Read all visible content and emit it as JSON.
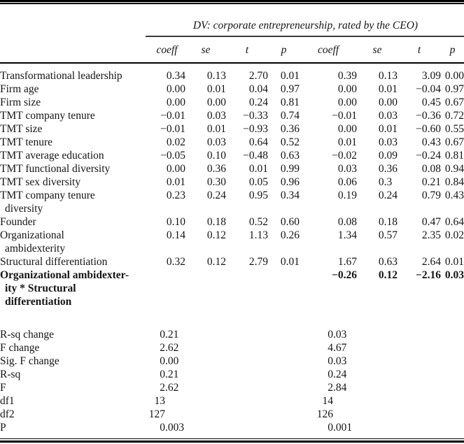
{
  "table": {
    "dv_header": "DV: corporate entrepreneurship, rated by the CEO)",
    "col_headers": [
      "coeff",
      "se",
      "t",
      "p",
      "coeff",
      "se",
      "t",
      "p"
    ],
    "rows": [
      {
        "label_lines": [
          "Transformational leadership"
        ],
        "m1": [
          "0.34",
          "0.13",
          "2.70",
          "0.01"
        ],
        "m2": [
          "0.39",
          "0.13",
          "3.09",
          "0.00"
        ],
        "bold": false
      },
      {
        "label_lines": [
          "Firm age"
        ],
        "m1": [
          "0.00",
          "0.01",
          "0.04",
          "0.97"
        ],
        "m2": [
          "0.00",
          "0.01",
          "−0.04",
          "0.97"
        ],
        "bold": false
      },
      {
        "label_lines": [
          "Firm size"
        ],
        "m1": [
          "0.00",
          "0.00",
          "0.24",
          "0.81"
        ],
        "m2": [
          "0.00",
          "0.00",
          "0.45",
          "0.67"
        ],
        "bold": false
      },
      {
        "label_lines": [
          "TMT company tenure"
        ],
        "m1": [
          "−0.01",
          "0.03",
          "−0.33",
          "0.74"
        ],
        "m2": [
          "−0.01",
          "0.03",
          "−0.36",
          "0.72"
        ],
        "bold": false
      },
      {
        "label_lines": [
          "TMT size"
        ],
        "m1": [
          "−0.01",
          "0.01",
          "−0.93",
          "0.36"
        ],
        "m2": [
          "0.00",
          "0.01",
          "−0.60",
          "0.55"
        ],
        "bold": false
      },
      {
        "label_lines": [
          "TMT tenure"
        ],
        "m1": [
          "0.02",
          "0.03",
          "0.64",
          "0.52"
        ],
        "m2": [
          "0.01",
          "0.03",
          "0.43",
          "0.67"
        ],
        "bold": false
      },
      {
        "label_lines": [
          "TMT average education"
        ],
        "m1": [
          "−0.05",
          "0.10",
          "−0.48",
          "0.63"
        ],
        "m2": [
          "−0.02",
          "0.09",
          "−0.24",
          "0.81"
        ],
        "bold": false
      },
      {
        "label_lines": [
          "TMT functional diversity"
        ],
        "m1": [
          "0.00",
          "0.36",
          "0.01",
          "0.99"
        ],
        "m2": [
          "0.03",
          "0.36",
          "0.08",
          "0.94"
        ],
        "bold": false
      },
      {
        "label_lines": [
          "TMT sex diversity"
        ],
        "m1": [
          "0.01",
          "0.30",
          "0.05",
          "0.96"
        ],
        "m2": [
          "0.06",
          "0.3",
          "0.21",
          "0.84"
        ],
        "bold": false
      },
      {
        "label_lines": [
          "TMT company tenure",
          "diversity"
        ],
        "m1": [
          "0.23",
          "0.24",
          "0.95",
          "0.34"
        ],
        "m2": [
          "0.19",
          "0.24",
          "0.79",
          "0.43"
        ],
        "bold": false
      },
      {
        "label_lines": [
          "Founder"
        ],
        "m1": [
          "0.10",
          "0.18",
          "0.52",
          "0.60"
        ],
        "m2": [
          "0.08",
          "0.18",
          "0.47",
          "0.64"
        ],
        "bold": false
      },
      {
        "label_lines": [
          "Organizational",
          "ambidexterity"
        ],
        "m1": [
          "0.14",
          "0.12",
          "1.13",
          "0.26"
        ],
        "m2": [
          "1.34",
          "0.57",
          "2.35",
          "0.02"
        ],
        "bold": false
      },
      {
        "label_lines": [
          "Structural differentiation"
        ],
        "m1": [
          "0.32",
          "0.12",
          "2.79",
          "0.01"
        ],
        "m2": [
          "1.67",
          "0.63",
          "2.64",
          "0.01"
        ],
        "bold": false
      },
      {
        "label_lines": [
          "Organizational ambidexter-",
          "ity * Structural",
          "differentiation"
        ],
        "m1": [
          "",
          "",
          "",
          ""
        ],
        "m2": [
          "−0.26",
          "0.12",
          "−2.16",
          "0.03"
        ],
        "bold": true
      }
    ],
    "summary_rows": [
      {
        "label": "R-sq change",
        "m1": "0.21",
        "m2": "0.03"
      },
      {
        "label": "F change",
        "m1": "2.62",
        "m2": "4.67"
      },
      {
        "label": "Sig. F change",
        "m1": "0.00",
        "m2": "0.03"
      },
      {
        "label": "R-sq",
        "m1": "0.21",
        "m2": "0.24"
      },
      {
        "label": "F",
        "m1": "2.62",
        "m2": "2.84"
      },
      {
        "label": "df1",
        "m1": "13",
        "m2": "14"
      },
      {
        "label": "df2",
        "m1": "127",
        "m2": "126"
      },
      {
        "label": "P",
        "m1": "0.003",
        "m2": "0.001"
      }
    ]
  }
}
